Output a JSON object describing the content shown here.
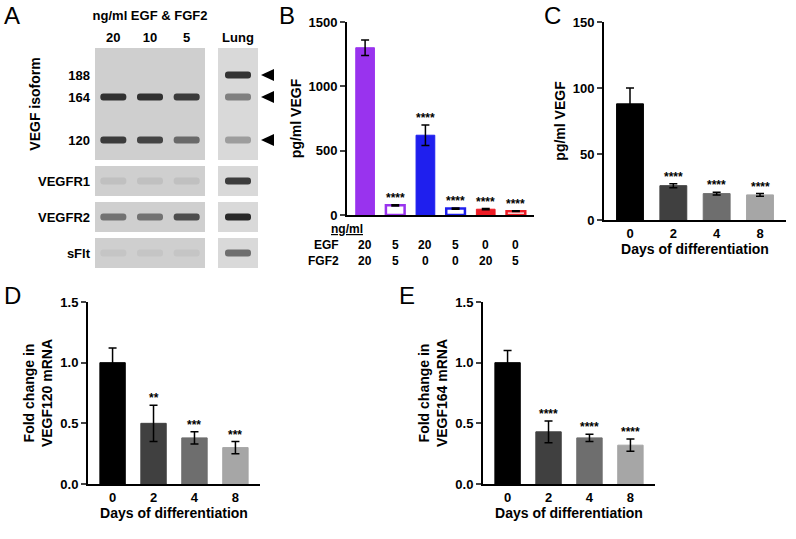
{
  "gel": {
    "panel": "A",
    "header": "ng/ml EGF & FGF2",
    "lanes": [
      "20",
      "10",
      "5"
    ],
    "reference_lane": "Lung",
    "isoform_label": "VEGF isoform",
    "isoforms": [
      "188",
      "164",
      "120"
    ],
    "isoform_bands": [
      [
        0,
        0,
        0,
        0.85
      ],
      [
        0.85,
        0.85,
        0.8,
        0.45
      ],
      [
        0.8,
        0.75,
        0.55,
        0.3
      ]
    ],
    "blots": [
      {
        "label": "VEGFR1",
        "bands": [
          0.08,
          0.08,
          0.08,
          0.8
        ]
      },
      {
        "label": "VEGFR2",
        "bands": [
          0.5,
          0.5,
          0.7,
          0.9
        ]
      },
      {
        "label": "sFlt",
        "bands": [
          0.05,
          0.05,
          0.05,
          0.55
        ]
      }
    ]
  },
  "chart_data": [
    {
      "panel": "B",
      "type": "bar",
      "ylabel": "pg/ml VEGF",
      "x_header": "ng/ml",
      "row_labels": [
        "EGF",
        "FGF2"
      ],
      "rows": [
        [
          20,
          5,
          20,
          5,
          0,
          0
        ],
        [
          20,
          5,
          0,
          0,
          20,
          5
        ]
      ],
      "series": [
        {
          "marker": "filled",
          "values": [
            1300,
            null,
            620,
            null,
            45,
            null
          ],
          "errors": [
            60,
            null,
            80,
            null,
            5,
            null
          ],
          "colors": [
            "#9933ee",
            null,
            "#1f1fee",
            null,
            "#ee1c25",
            null
          ]
        },
        {
          "marker": "hollow",
          "values": [
            null,
            75,
            null,
            50,
            null,
            30
          ],
          "errors": [
            null,
            5,
            null,
            5,
            null,
            3
          ],
          "colors": [
            null,
            "#9933ee",
            null,
            "#1f1fee",
            null,
            "#ee1c25"
          ]
        }
      ],
      "significance": [
        null,
        "****",
        "****",
        "****",
        "****",
        "****"
      ],
      "ylim": [
        0,
        1500
      ],
      "yticks": [
        0,
        500,
        1000,
        1500
      ]
    },
    {
      "panel": "C",
      "type": "bar",
      "categories": [
        "0",
        "2",
        "4",
        "8"
      ],
      "xlabel": "Days of differentiation",
      "ylabel": "pg/ml VEGF",
      "values": [
        88,
        26,
        20,
        19
      ],
      "errors": [
        12,
        1.5,
        1,
        1
      ],
      "colors": [
        "#000000",
        "#404040",
        "#6e6e6e",
        "#a6a6a6"
      ],
      "significance": [
        null,
        "****",
        "****",
        "****"
      ],
      "ylim": [
        0,
        150
      ],
      "yticks": [
        0,
        50,
        100,
        150
      ]
    },
    {
      "panel": "D",
      "type": "bar",
      "categories": [
        "0",
        "2",
        "4",
        "8"
      ],
      "xlabel": "Days of differentiation",
      "ylabel": "Fold change in\nVEGF120 mRNA",
      "values": [
        1.0,
        0.5,
        0.38,
        0.3
      ],
      "errors": [
        0.12,
        0.15,
        0.05,
        0.05
      ],
      "colors": [
        "#000000",
        "#404040",
        "#6e6e6e",
        "#a6a6a6"
      ],
      "significance": [
        null,
        "**",
        "***",
        "***"
      ],
      "ylim": [
        0,
        1.5
      ],
      "yticks": [
        {
          "value": 0,
          "label": "0.0"
        },
        0.5,
        {
          "value": 1,
          "label": "1.0"
        },
        1.5
      ]
    },
    {
      "panel": "E",
      "type": "bar",
      "categories": [
        "0",
        "2",
        "4",
        "8"
      ],
      "xlabel": "Days of differentiation",
      "ylabel": "Fold change in\nVEGF164 mRNA",
      "values": [
        1.0,
        0.43,
        0.38,
        0.32
      ],
      "errors": [
        0.1,
        0.09,
        0.03,
        0.05
      ],
      "colors": [
        "#000000",
        "#404040",
        "#6e6e6e",
        "#a6a6a6"
      ],
      "significance": [
        null,
        "****",
        "****",
        "****"
      ],
      "ylim": [
        0,
        1.5
      ],
      "yticks": [
        {
          "value": 0,
          "label": "0.0"
        },
        0.5,
        {
          "value": 1,
          "label": "1.0"
        },
        1.5
      ]
    }
  ]
}
